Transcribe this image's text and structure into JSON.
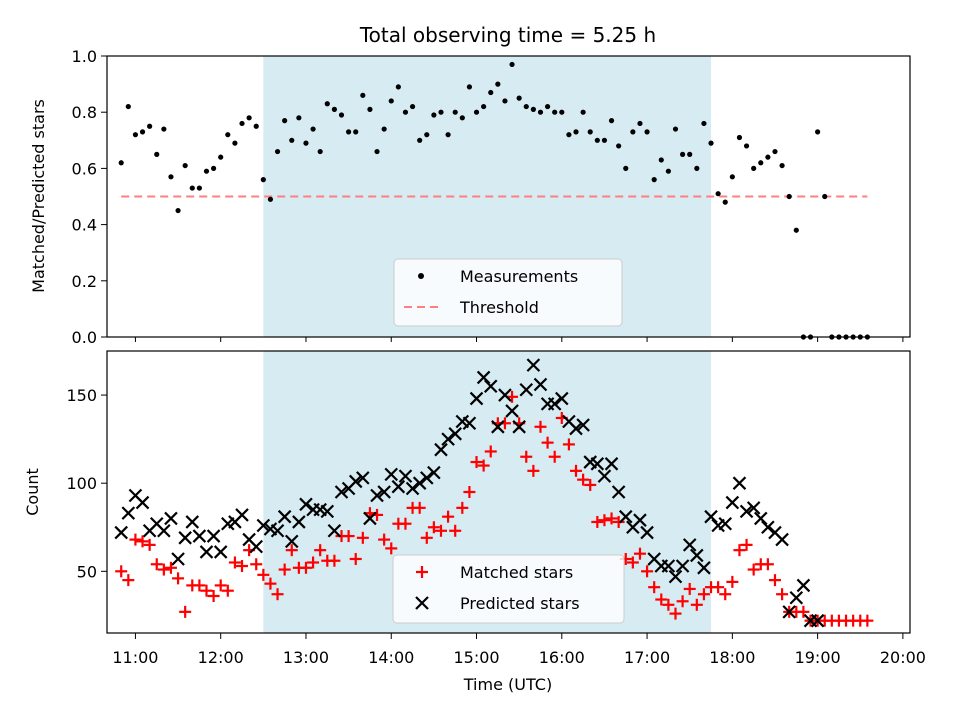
{
  "chart_data": [
    {
      "type": "scatter",
      "title": "Total observing time = 5.25 h",
      "xlabel": "",
      "ylabel": "Matched/Predicted stars",
      "ylim": [
        0,
        1
      ],
      "yticks": [
        "0.0",
        "0.2",
        "0.4",
        "0.6",
        "0.8",
        "1.0"
      ],
      "highlight_span": [
        "12:30",
        "17:45"
      ],
      "legend": {
        "position": "bottom-center",
        "entries": [
          "Measurements",
          "Threshold"
        ]
      },
      "threshold": {
        "name": "Threshold",
        "value": 0.5,
        "x_range": [
          "10:50",
          "19:35"
        ],
        "color": "#ff7f7f"
      },
      "series": [
        {
          "name": "Measurements",
          "marker": "dot",
          "color": "#000000",
          "x": [
            "10:50",
            "10:55",
            "11:00",
            "11:05",
            "11:10",
            "11:15",
            "11:20",
            "11:25",
            "11:30",
            "11:35",
            "11:40",
            "11:45",
            "11:50",
            "11:55",
            "12:00",
            "12:05",
            "12:10",
            "12:15",
            "12:20",
            "12:25",
            "12:30",
            "12:35",
            "12:40",
            "12:45",
            "12:50",
            "12:55",
            "13:00",
            "13:05",
            "13:10",
            "13:15",
            "13:20",
            "13:25",
            "13:30",
            "13:35",
            "13:40",
            "13:45",
            "13:50",
            "13:55",
            "14:00",
            "14:05",
            "14:10",
            "14:15",
            "14:20",
            "14:25",
            "14:30",
            "14:35",
            "14:40",
            "14:45",
            "14:50",
            "14:55",
            "15:00",
            "15:05",
            "15:10",
            "15:15",
            "15:20",
            "15:25",
            "15:30",
            "15:35",
            "15:40",
            "15:45",
            "15:50",
            "15:55",
            "16:00",
            "16:05",
            "16:10",
            "16:15",
            "16:20",
            "16:25",
            "16:30",
            "16:35",
            "16:40",
            "16:45",
            "16:50",
            "16:55",
            "17:00",
            "17:05",
            "17:10",
            "17:15",
            "17:20",
            "17:25",
            "17:30",
            "17:35",
            "17:40",
            "17:45",
            "17:50",
            "17:55",
            "18:00",
            "18:05",
            "18:10",
            "18:15",
            "18:20",
            "18:25",
            "18:30",
            "18:35",
            "18:40",
            "18:45",
            "18:50",
            "18:55",
            "19:00",
            "19:05",
            "19:10",
            "19:15",
            "19:20",
            "19:25",
            "19:30",
            "19:35"
          ],
          "y": [
            0.62,
            0.82,
            0.72,
            0.73,
            0.75,
            0.65,
            0.74,
            0.57,
            0.45,
            0.61,
            0.53,
            0.53,
            0.59,
            0.6,
            0.64,
            0.72,
            0.69,
            0.76,
            0.78,
            0.75,
            0.56,
            0.49,
            0.66,
            0.77,
            0.7,
            0.78,
            0.69,
            0.74,
            0.66,
            0.83,
            0.81,
            0.79,
            0.73,
            0.73,
            0.86,
            0.81,
            0.66,
            0.74,
            0.84,
            0.89,
            0.8,
            0.82,
            0.7,
            0.72,
            0.79,
            0.8,
            0.72,
            0.8,
            0.78,
            0.89,
            0.8,
            0.82,
            0.87,
            0.9,
            0.84,
            0.97,
            0.85,
            0.82,
            0.81,
            0.8,
            0.82,
            0.8,
            0.8,
            0.72,
            0.73,
            0.8,
            0.73,
            0.7,
            0.7,
            0.77,
            0.68,
            0.6,
            0.73,
            0.76,
            0.73,
            0.56,
            0.63,
            0.59,
            0.74,
            0.65,
            0.65,
            0.6,
            0.76,
            0.69,
            0.51,
            0.48,
            0.57,
            0.71,
            0.68,
            0.6,
            0.62,
            0.64,
            0.66,
            0.61,
            0.5,
            0.38,
            0.0,
            0.0,
            0.73,
            0.5,
            0.0,
            0.0,
            0.0,
            0.0,
            0.0,
            0.0
          ]
        }
      ]
    },
    {
      "type": "scatter",
      "title": "",
      "xlabel": "Time (UTC)",
      "ylabel": "Count",
      "ylim": [
        15,
        175
      ],
      "yticks": [
        "50",
        "100",
        "150"
      ],
      "xticks": [
        "11:00",
        "12:00",
        "13:00",
        "14:00",
        "15:00",
        "16:00",
        "17:00",
        "18:00",
        "19:00",
        "20:00"
      ],
      "highlight_span": [
        "12:30",
        "17:45"
      ],
      "legend": {
        "position": "bottom-center",
        "entries": [
          "Matched stars",
          "Predicted stars"
        ]
      },
      "series": [
        {
          "name": "Matched stars",
          "marker": "plus",
          "color": "#ff0000",
          "x": [
            "10:50",
            "10:55",
            "11:00",
            "11:05",
            "11:10",
            "11:15",
            "11:20",
            "11:25",
            "11:30",
            "11:35",
            "11:40",
            "11:45",
            "11:50",
            "11:55",
            "12:00",
            "12:05",
            "12:10",
            "12:15",
            "12:20",
            "12:25",
            "12:30",
            "12:35",
            "12:40",
            "12:45",
            "12:50",
            "12:55",
            "13:00",
            "13:05",
            "13:10",
            "13:15",
            "13:20",
            "13:25",
            "13:30",
            "13:35",
            "13:40",
            "13:45",
            "13:50",
            "13:55",
            "14:00",
            "14:05",
            "14:10",
            "14:15",
            "14:20",
            "14:25",
            "14:30",
            "14:35",
            "14:40",
            "14:45",
            "14:50",
            "14:55",
            "15:00",
            "15:05",
            "15:10",
            "15:15",
            "15:20",
            "15:25",
            "15:30",
            "15:35",
            "15:40",
            "15:45",
            "15:50",
            "15:55",
            "16:00",
            "16:05",
            "16:10",
            "16:15",
            "16:20",
            "16:25",
            "16:30",
            "16:35",
            "16:40",
            "16:45",
            "16:50",
            "16:55",
            "17:00",
            "17:05",
            "17:10",
            "17:15",
            "17:20",
            "17:25",
            "17:30",
            "17:35",
            "17:40",
            "17:45",
            "17:50",
            "17:55",
            "18:00",
            "18:05",
            "18:10",
            "18:15",
            "18:20",
            "18:25",
            "18:30",
            "18:35",
            "18:40",
            "18:45",
            "18:50",
            "18:55",
            "19:00",
            "19:05",
            "19:10",
            "19:15",
            "19:20",
            "19:25",
            "19:30",
            "19:35"
          ],
          "y": [
            50,
            45,
            68,
            67,
            65,
            54,
            51,
            52,
            46,
            27,
            42,
            42,
            39,
            36,
            42,
            39,
            55,
            53,
            62,
            54,
            48,
            43,
            37,
            51,
            62,
            52,
            52,
            55,
            62,
            56,
            56,
            70,
            70,
            57,
            69,
            83,
            82,
            68,
            63,
            77,
            77,
            86,
            86,
            69,
            75,
            73,
            81,
            73,
            86,
            95,
            112,
            110,
            118,
            134,
            134,
            149,
            134,
            115,
            107,
            132,
            123,
            115,
            137,
            122,
            107,
            102,
            99,
            78,
            79,
            80,
            78,
            57,
            55,
            60,
            50,
            41,
            34,
            31,
            26,
            33,
            40,
            31,
            37,
            41,
            41,
            37,
            44,
            62,
            65,
            51,
            54,
            54,
            45,
            37,
            27,
            27,
            27,
            22,
            22,
            22,
            22,
            22,
            22,
            22,
            22,
            22
          ]
        },
        {
          "name": "Predicted stars",
          "marker": "x",
          "color": "#000000",
          "x": [
            "10:50",
            "10:55",
            "11:00",
            "11:05",
            "11:10",
            "11:15",
            "11:20",
            "11:25",
            "11:30",
            "11:35",
            "11:40",
            "11:45",
            "11:50",
            "11:55",
            "12:00",
            "12:05",
            "12:10",
            "12:15",
            "12:20",
            "12:25",
            "12:30",
            "12:35",
            "12:40",
            "12:45",
            "12:50",
            "12:55",
            "13:00",
            "13:05",
            "13:10",
            "13:15",
            "13:20",
            "13:25",
            "13:30",
            "13:35",
            "13:40",
            "13:45",
            "13:50",
            "13:55",
            "14:00",
            "14:05",
            "14:10",
            "14:15",
            "14:20",
            "14:25",
            "14:30",
            "14:35",
            "14:40",
            "14:45",
            "14:50",
            "14:55",
            "15:00",
            "15:05",
            "15:10",
            "15:15",
            "15:20",
            "15:25",
            "15:30",
            "15:35",
            "15:40",
            "15:45",
            "15:50",
            "15:55",
            "16:00",
            "16:05",
            "16:10",
            "16:15",
            "16:20",
            "16:25",
            "16:30",
            "16:35",
            "16:40",
            "16:45",
            "16:50",
            "16:55",
            "17:00",
            "17:05",
            "17:10",
            "17:15",
            "17:20",
            "17:25",
            "17:30",
            "17:35",
            "17:40",
            "17:45",
            "17:50",
            "17:55",
            "18:00",
            "18:05",
            "18:10",
            "18:15",
            "18:20",
            "18:25",
            "18:30",
            "18:35",
            "18:40",
            "18:45",
            "18:50",
            "18:55",
            "19:00"
          ],
          "y": [
            72,
            83,
            93,
            89,
            73,
            77,
            73,
            80,
            57,
            69,
            78,
            70,
            61,
            70,
            61,
            77,
            78,
            82,
            68,
            64,
            76,
            74,
            73,
            81,
            67,
            78,
            88,
            85,
            85,
            84,
            73,
            95,
            97,
            101,
            103,
            80,
            93,
            95,
            105,
            98,
            104,
            97,
            100,
            103,
            106,
            119,
            125,
            128,
            135,
            134,
            148,
            160,
            155,
            132,
            150,
            141,
            132,
            153,
            167,
            156,
            145,
            145,
            148,
            135,
            131,
            133,
            112,
            111,
            104,
            111,
            95,
            81,
            75,
            79,
            72,
            57,
            53,
            53,
            47,
            53,
            65,
            59,
            52,
            81,
            76,
            77,
            89,
            100,
            84,
            86,
            80,
            75,
            72,
            68,
            27,
            35,
            42,
            22,
            22
          ]
        }
      ]
    }
  ]
}
